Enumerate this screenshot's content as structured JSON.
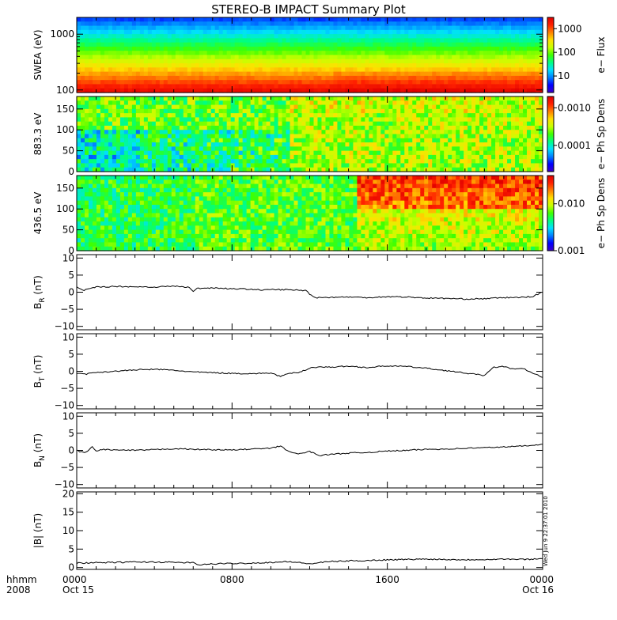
{
  "title": "STEREO-B IMPACT Summary Plot",
  "timestamp": "Wed Jun 9 22:37:01 2010",
  "colors": {
    "axis": "#000000",
    "line": "#000000",
    "palette": [
      "#3b00c8",
      "#0000ff",
      "#0080ff",
      "#00e0ff",
      "#00ff80",
      "#40ff00",
      "#c8ff00",
      "#ffe000",
      "#ff8000",
      "#ff2000",
      "#e00000"
    ]
  },
  "x_axis": {
    "label_line1": "hhmm",
    "label_line2": "2008",
    "ticks": [
      {
        "t": 0,
        "label": "0000",
        "sub": "Oct 15"
      },
      {
        "t": 8,
        "label": "0800",
        "sub": ""
      },
      {
        "t": 16,
        "label": "1600",
        "sub": ""
      },
      {
        "t": 24,
        "label": "0000",
        "sub": "Oct 16"
      }
    ],
    "range_hours": [
      0,
      24
    ]
  },
  "chart_data": [
    {
      "id": "swea",
      "type": "heatmap",
      "ylabel": "SWEA (eV)",
      "yscale": "log",
      "ylim": [
        90,
        2000
      ],
      "yticks": [
        {
          "v": 100,
          "label": "100"
        },
        {
          "v": 1000,
          "label": "1000"
        }
      ],
      "colorbar": {
        "label": "e− Flux",
        "scale": "log",
        "range": [
          2,
          3000
        ],
        "ticks": [
          {
            "v": 10,
            "label": "10"
          },
          {
            "v": 100,
            "label": "100"
          },
          {
            "v": 1000,
            "label": "1000"
          }
        ]
      },
      "description_profile": [
        {
          "y": 100,
          "flux": 1500
        },
        {
          "y": 200,
          "flux": 400
        },
        {
          "y": 400,
          "flux": 100
        },
        {
          "y": 800,
          "flux": 20
        },
        {
          "y": 1500,
          "flux": 4
        }
      ]
    },
    {
      "id": "pad883",
      "type": "heatmap",
      "ylabel": "883.3 eV",
      "ylim": [
        0,
        180
      ],
      "yticks": [
        {
          "v": 0,
          "label": "0"
        },
        {
          "v": 50,
          "label": "50"
        },
        {
          "v": 100,
          "label": "100"
        },
        {
          "v": 150,
          "label": "150"
        }
      ],
      "colorbar": {
        "label": "e− Ph Sp Dens",
        "scale": "log",
        "range": [
          2e-05,
          0.002
        ],
        "ticks": [
          {
            "v": 0.0001,
            "label": "0.0001"
          },
          {
            "v": 0.001,
            "label": "0.0010"
          }
        ]
      }
    },
    {
      "id": "pad436",
      "type": "heatmap",
      "ylabel": "436.5 eV",
      "ylim": [
        0,
        180
      ],
      "yticks": [
        {
          "v": 0,
          "label": "0"
        },
        {
          "v": 50,
          "label": "50"
        },
        {
          "v": 100,
          "label": "100"
        },
        {
          "v": 150,
          "label": "150"
        }
      ],
      "colorbar": {
        "label": "e− Ph Sp Dens",
        "scale": "log",
        "range": [
          0.001,
          0.04
        ],
        "ticks": [
          {
            "v": 0.001,
            "label": "0.001"
          },
          {
            "v": 0.01,
            "label": "0.010"
          }
        ]
      }
    },
    {
      "id": "br",
      "type": "line",
      "ylabel": "B",
      "ysub": "R",
      "yunit": " (nT)",
      "ylim": [
        -11,
        11
      ],
      "yticks": [
        {
          "v": -10,
          "label": "−10"
        },
        {
          "v": -5,
          "label": "−5"
        },
        {
          "v": 0,
          "label": "0"
        },
        {
          "v": 5,
          "label": "5"
        },
        {
          "v": 10,
          "label": "10"
        }
      ],
      "x": [
        0,
        0.3,
        0.7,
        1,
        2,
        3,
        4,
        5,
        5.8,
        6,
        6.2,
        7,
        8,
        9,
        9.5,
        10,
        11,
        11.8,
        12,
        12.3,
        13,
        14,
        15,
        16,
        17,
        18,
        19,
        20,
        21,
        22,
        23,
        23.5,
        24
      ],
      "y": [
        1.5,
        0.5,
        1.0,
        1.5,
        1.7,
        1.6,
        1.5,
        1.8,
        1.4,
        0.2,
        1.1,
        1.3,
        1.0,
        0.9,
        0.6,
        0.8,
        0.7,
        0.5,
        -0.5,
        -1.6,
        -1.5,
        -1.4,
        -1.6,
        -1.3,
        -1.4,
        -1.7,
        -1.8,
        -2.0,
        -1.9,
        -1.6,
        -1.5,
        -1.2,
        0
      ]
    },
    {
      "id": "bt",
      "type": "line",
      "ylabel": "B",
      "ysub": "T",
      "yunit": " (nT)",
      "ylim": [
        -11,
        11
      ],
      "yticks": [
        {
          "v": -10,
          "label": "−10"
        },
        {
          "v": -5,
          "label": "−5"
        },
        {
          "v": 0,
          "label": "0"
        },
        {
          "v": 5,
          "label": "5"
        },
        {
          "v": 10,
          "label": "10"
        }
      ],
      "x": [
        0,
        0.5,
        1,
        2,
        3,
        4,
        5,
        6,
        7,
        8,
        9,
        10,
        10.5,
        11,
        11.5,
        12,
        12.5,
        13,
        14,
        15,
        16,
        17,
        18,
        19,
        20,
        21,
        21.5,
        22,
        22.5,
        23,
        23.5,
        24
      ],
      "y": [
        -0.5,
        -0.8,
        -0.3,
        0.0,
        0.4,
        0.6,
        0.3,
        -0.2,
        -0.4,
        -0.6,
        -0.7,
        -0.5,
        -1.5,
        -0.6,
        -0.3,
        1.0,
        1.3,
        1.2,
        1.5,
        1.1,
        1.6,
        1.4,
        0.9,
        0.2,
        -0.5,
        -1.2,
        1.2,
        1.4,
        0.6,
        0.8,
        -0.6,
        -1.8
      ]
    },
    {
      "id": "bn",
      "type": "line",
      "ylabel": "B",
      "ysub": "N",
      "yunit": " (nT)",
      "ylim": [
        -11,
        11
      ],
      "yticks": [
        {
          "v": -10,
          "label": "−10"
        },
        {
          "v": -5,
          "label": "−5"
        },
        {
          "v": 0,
          "label": "0"
        },
        {
          "v": 5,
          "label": "5"
        },
        {
          "v": 10,
          "label": "10"
        }
      ],
      "x": [
        0,
        0.4,
        0.8,
        1,
        1.3,
        2,
        3,
        4,
        5,
        6,
        7,
        8,
        9,
        10,
        10.5,
        11,
        11.5,
        12,
        12.5,
        13,
        14,
        15,
        16,
        17,
        18,
        19,
        20,
        21,
        22,
        23,
        24
      ],
      "y": [
        0,
        -0.8,
        1.0,
        -0.3,
        0.3,
        0.1,
        0.0,
        0.2,
        0.5,
        0.3,
        0.2,
        0.1,
        0.4,
        0.6,
        1.3,
        -0.6,
        -1.0,
        -0.3,
        -1.5,
        -1.2,
        -0.8,
        -0.6,
        -0.2,
        0.0,
        0.3,
        0.4,
        0.6,
        0.8,
        1.0,
        1.3,
        1.8
      ]
    },
    {
      "id": "bmag",
      "type": "line",
      "ylabel": "|B| (nT)",
      "ylim": [
        -0.5,
        20.5
      ],
      "yticks": [
        {
          "v": 0,
          "label": "0"
        },
        {
          "v": 5,
          "label": "5"
        },
        {
          "v": 10,
          "label": "10"
        },
        {
          "v": 15,
          "label": "15"
        },
        {
          "v": 20,
          "label": "20"
        }
      ],
      "x": [
        0,
        1,
        2,
        3,
        4,
        5,
        6,
        6.2,
        7,
        8,
        9,
        10,
        11,
        12,
        13,
        14,
        15,
        16,
        17,
        18,
        19,
        20,
        21,
        22,
        23,
        24
      ],
      "y": [
        1.2,
        1.3,
        1.4,
        1.5,
        1.5,
        1.4,
        1.3,
        0.7,
        1.0,
        1.1,
        1.2,
        1.4,
        1.6,
        1.0,
        1.6,
        1.8,
        1.9,
        2.1,
        2.2,
        2.3,
        2.2,
        2.1,
        2.2,
        2.3,
        2.2,
        2.4
      ]
    }
  ]
}
